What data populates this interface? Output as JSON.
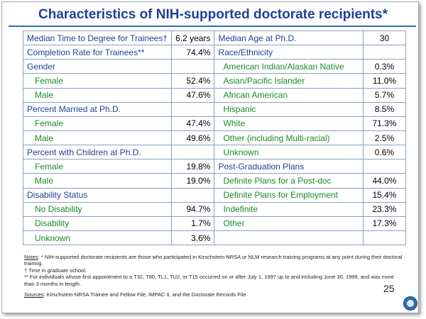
{
  "title": "Characteristics of NIH-supported doctorate recipients*",
  "left_rows": [
    {
      "label": "Median Time to Degree for Trainees†",
      "value": "6.2 years",
      "sub": false
    },
    {
      "label": "Completion Rate for Trainees**",
      "value": "74.4%",
      "sub": false
    },
    {
      "label": "Gender",
      "value": "",
      "sub": false
    },
    {
      "label": "Female",
      "value": "52.4%",
      "sub": true
    },
    {
      "label": "Male",
      "value": "47.6%",
      "sub": true
    },
    {
      "label": "Percent Married at Ph.D.",
      "value": "",
      "sub": false
    },
    {
      "label": "Female",
      "value": "47.4%",
      "sub": true
    },
    {
      "label": "Male",
      "value": "49.6%",
      "sub": true
    },
    {
      "label": "Percent with Children at Ph.D.",
      "value": "",
      "sub": false
    },
    {
      "label": "Female",
      "value": "19.8%",
      "sub": true
    },
    {
      "label": "Male",
      "value": "19.0%",
      "sub": true
    },
    {
      "label": "Disability Status",
      "value": "",
      "sub": false
    },
    {
      "label": "No Disability",
      "value": "94.7%",
      "sub": true
    },
    {
      "label": "Disability",
      "value": "1.7%",
      "sub": true
    },
    {
      "label": "Unknown",
      "value": "3.6%",
      "sub": true
    }
  ],
  "right_rows": [
    {
      "label": "Median Age at Ph.D.",
      "value": "30",
      "sub": false
    },
    {
      "label": "Race/Ethnicity",
      "value": "",
      "sub": false
    },
    {
      "label": "American Indian/Alaskan Native",
      "value": "0.3%",
      "sub": true
    },
    {
      "label": "Asian/Pacific Islander",
      "value": "11.0%",
      "sub": true
    },
    {
      "label": "African American",
      "value": "5.7%",
      "sub": true
    },
    {
      "label": "Hispanic",
      "value": "8.5%",
      "sub": true
    },
    {
      "label": "White",
      "value": "71.3%",
      "sub": true
    },
    {
      "label": "Other (including Multi-racial)",
      "value": "2.5%",
      "sub": true
    },
    {
      "label": "Unknown",
      "value": "0.6%",
      "sub": true
    },
    {
      "label": "Post-Graduation Plans",
      "value": "",
      "sub": false
    },
    {
      "label": "Definite Plans for a Post-doc",
      "value": "44.0%",
      "sub": true
    },
    {
      "label": "Definite Plans for Employment",
      "value": "15.4%",
      "sub": true
    },
    {
      "label": "Indefinite",
      "value": "23.3%",
      "sub": true
    },
    {
      "label": "Other",
      "value": "17.3%",
      "sub": true
    },
    {
      "label": "",
      "value": "",
      "sub": true
    }
  ],
  "notes": {
    "heading": "Notes",
    "line1": ": * NIH-supported doctorate recipients are those who participated in Kirschstein-NRSA or NLM research training programs at any point during their doctoral training.",
    "line2": "† Time in graduate school.",
    "line3": "** For individuals whose first appointment to a T32, T90, TL1, TU2, or T15 occurred on or after July 1, 1997 up to and including June 30, 1998, and was more than 3 months in length."
  },
  "sources": {
    "heading": "Sources",
    "text": ": Kirschstein-NRSA Trainee and Fellow File, IMPAC II, and the Doctorate Records File"
  },
  "page_number": "25",
  "colors": {
    "title": "#1f3f99",
    "sub_label": "#1a8a2a",
    "rule": "#2f6fb5"
  }
}
